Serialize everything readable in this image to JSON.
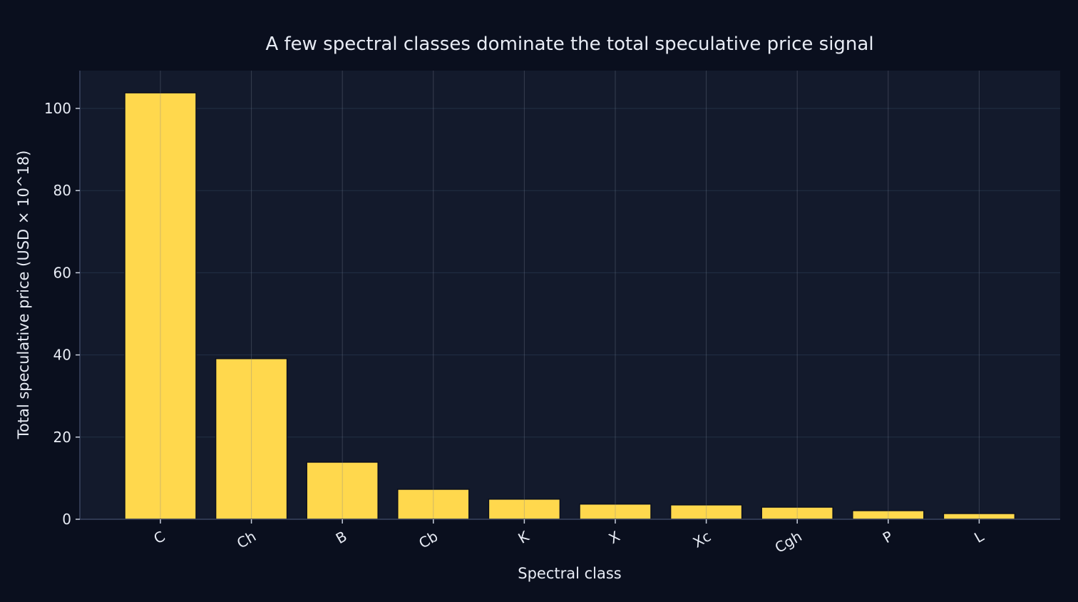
{
  "chart_data": {
    "type": "bar",
    "title": "A few spectral classes dominate the total speculative price signal",
    "xlabel": "Spectral class",
    "ylabel": "Total speculative price (USD × 10^18)",
    "categories": [
      "C",
      "Ch",
      "B",
      "Cb",
      "K",
      "X",
      "Xc",
      "Cgh",
      "P",
      "L"
    ],
    "values": [
      103.8,
      39.1,
      13.9,
      7.3,
      4.9,
      3.7,
      3.5,
      2.95,
      2.1,
      1.4
    ],
    "ylim": [
      0,
      109.2
    ],
    "yticks": [
      0,
      20,
      40,
      60,
      80,
      100
    ],
    "grid": true,
    "colors": {
      "background": "#0a0f1e",
      "plot": "#131a2c",
      "bar": "#ffd84d",
      "grid": "#233045",
      "text": "#e8ecf5"
    }
  }
}
